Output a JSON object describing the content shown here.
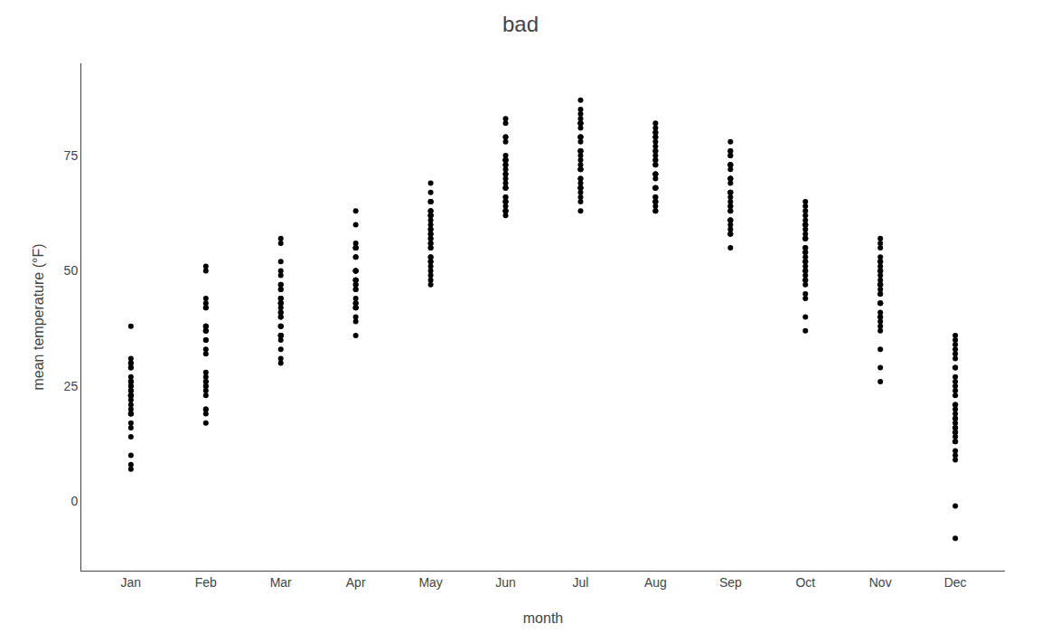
{
  "chart_data": {
    "type": "scatter",
    "title": "bad",
    "x_label": "month",
    "y_label": "mean temperature (°F)",
    "categories": [
      "Jan",
      "Feb",
      "Mar",
      "Apr",
      "May",
      "Jun",
      "Jul",
      "Aug",
      "Sep",
      "Oct",
      "Nov",
      "Dec"
    ],
    "values": [
      [
        24,
        23,
        31,
        23,
        24,
        26,
        23,
        23,
        19,
        16,
        19,
        21,
        30,
        29,
        26,
        26,
        23,
        30,
        27,
        25,
        38,
        29,
        22,
        25,
        8,
        10,
        14,
        17,
        19,
        20,
        7
      ],
      [
        17,
        20,
        23,
        25,
        35,
        37,
        42,
        38,
        37,
        38,
        43,
        44,
        50,
        51,
        26,
        26,
        24,
        25,
        19,
        20,
        27,
        32,
        38,
        35,
        42,
        37,
        33,
        28
      ],
      [
        30,
        31,
        38,
        41,
        44,
        47,
        50,
        52,
        56,
        57,
        49,
        46,
        43,
        38,
        36,
        35,
        36,
        42,
        46,
        43,
        40,
        41,
        44,
        38,
        33,
        36,
        40,
        44,
        47,
        43,
        36
      ],
      [
        36,
        43,
        48,
        50,
        53,
        55,
        56,
        50,
        47,
        43,
        42,
        46,
        48,
        50,
        55,
        60,
        63,
        55,
        48,
        47,
        44,
        42,
        42,
        39,
        40,
        46,
        50,
        48,
        53,
        55
      ],
      [
        47,
        49,
        53,
        57,
        58,
        62,
        65,
        69,
        67,
        65,
        62,
        58,
        55,
        52,
        50,
        56,
        60,
        62,
        63,
        59,
        56,
        53,
        51,
        55,
        59,
        63,
        65,
        61,
        57,
        52,
        48
      ],
      [
        63,
        66,
        68,
        71,
        73,
        74,
        74,
        74,
        72,
        70,
        68,
        66,
        65,
        64,
        63,
        65,
        68,
        71,
        73,
        75,
        78,
        79,
        82,
        83,
        79,
        74,
        69,
        65,
        63,
        62
      ],
      [
        63,
        67,
        72,
        76,
        79,
        82,
        83,
        82,
        79,
        76,
        73,
        70,
        68,
        66,
        65,
        68,
        72,
        75,
        78,
        81,
        84,
        87,
        85,
        82,
        79,
        76,
        74,
        72,
        70,
        69,
        68
      ],
      [
        63,
        65,
        68,
        71,
        74,
        76,
        79,
        81,
        80,
        77,
        74,
        71,
        68,
        66,
        64,
        65,
        68,
        71,
        73,
        75,
        78,
        80,
        82,
        79,
        76,
        73,
        70,
        68,
        66,
        65,
        63
      ],
      [
        55,
        58,
        61,
        64,
        67,
        70,
        73,
        76,
        75,
        72,
        69,
        66,
        63,
        61,
        59,
        61,
        64,
        67,
        70,
        73,
        75,
        78,
        76,
        73,
        70,
        67,
        65,
        63,
        60,
        58
      ],
      [
        37,
        40,
        44,
        48,
        51,
        54,
        57,
        60,
        62,
        60,
        57,
        54,
        52,
        50,
        48,
        49,
        52,
        55,
        58,
        60,
        63,
        65,
        64,
        61,
        59,
        57,
        55,
        53,
        50,
        47,
        45
      ],
      [
        26,
        29,
        33,
        37,
        40,
        43,
        46,
        48,
        50,
        52,
        51,
        49,
        47,
        45,
        43,
        41,
        39,
        38,
        40,
        43,
        45,
        47,
        50,
        52,
        55,
        57,
        56,
        53,
        50,
        47
      ],
      [
        13,
        15,
        18,
        21,
        25,
        29,
        33,
        36,
        35,
        32,
        29,
        26,
        23,
        21,
        19,
        18,
        17,
        16,
        15,
        14,
        13,
        11,
        10,
        9,
        16,
        20,
        24,
        27,
        31,
        34,
        -1,
        -8
      ]
    ],
    "color": "#000000",
    "ylim": [
      -15,
      95
    ],
    "yticks": [
      0,
      25,
      50,
      75
    ],
    "grid": false
  }
}
